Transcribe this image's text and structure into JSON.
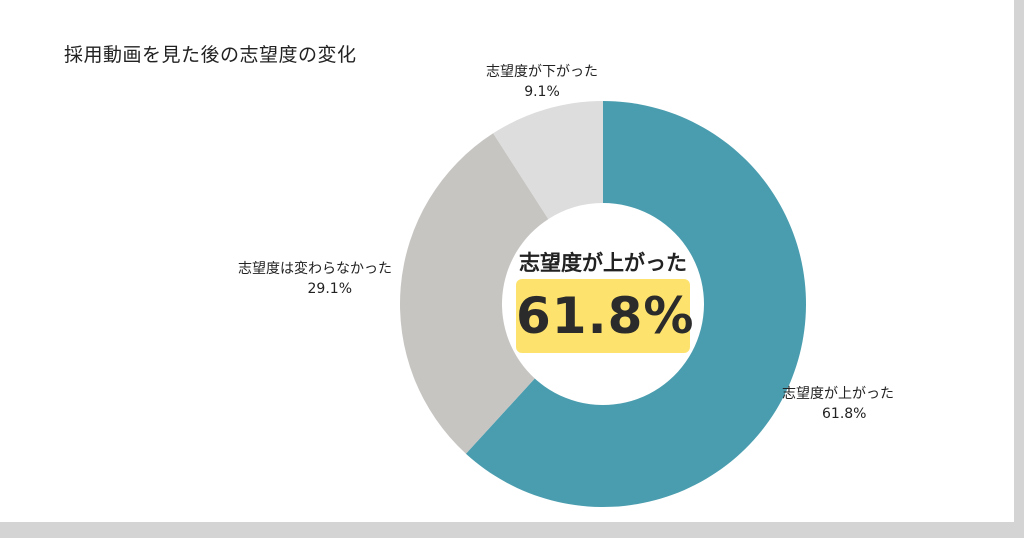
{
  "chart_data": {
    "type": "pie",
    "title": "採用動画を見た後の志望度の変化",
    "slices": [
      {
        "label": "志望度が上がった",
        "value": 61.8,
        "display": "61.8%",
        "color": "#4a9daf"
      },
      {
        "label": "志望度は変わらなかった",
        "value": 29.1,
        "display": "29.1%",
        "color": "#c7c5c2"
      },
      {
        "label": "志望度が下がった",
        "value": 9.1,
        "display": "9.1%",
        "color": "#dcdddc"
      }
    ],
    "center": {
      "caption": "志望度が上がった",
      "value": "61.8%",
      "highlight_color": "#fde36e"
    }
  }
}
